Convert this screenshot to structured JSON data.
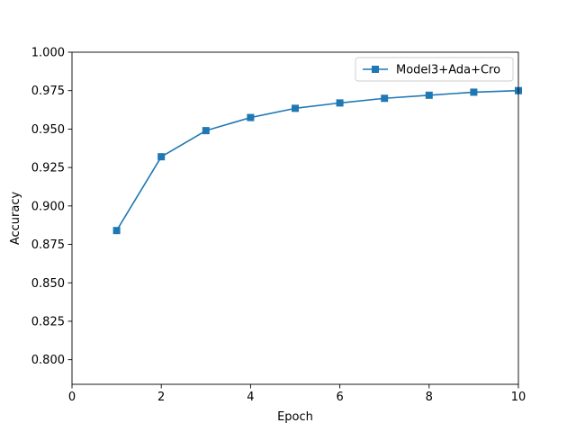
{
  "chart_data": {
    "type": "line",
    "title": "",
    "xlabel": "Epoch",
    "ylabel": "Accuracy",
    "xlim": [
      0,
      10
    ],
    "ylim": [
      0.784,
      1.0
    ],
    "xticks": [
      0,
      2,
      4,
      6,
      8,
      10
    ],
    "xtick_labels": [
      "0",
      "2",
      "4",
      "6",
      "8",
      "10"
    ],
    "yticks": [
      0.8,
      0.825,
      0.85,
      0.875,
      0.9,
      0.925,
      0.95,
      0.975,
      1.0
    ],
    "ytick_labels": [
      "0.800",
      "0.825",
      "0.850",
      "0.875",
      "0.900",
      "0.925",
      "0.950",
      "0.975",
      "1.000"
    ],
    "grid": false,
    "legend_position": "top-right",
    "x": [
      1,
      2,
      3,
      4,
      5,
      6,
      7,
      8,
      9,
      10
    ],
    "series": [
      {
        "name": "Model3+Ada+Cro",
        "color": "#1f77b4",
        "marker": "square",
        "values": [
          0.884,
          0.932,
          0.949,
          0.9575,
          0.9635,
          0.967,
          0.97,
          0.972,
          0.974,
          0.975
        ]
      }
    ]
  }
}
